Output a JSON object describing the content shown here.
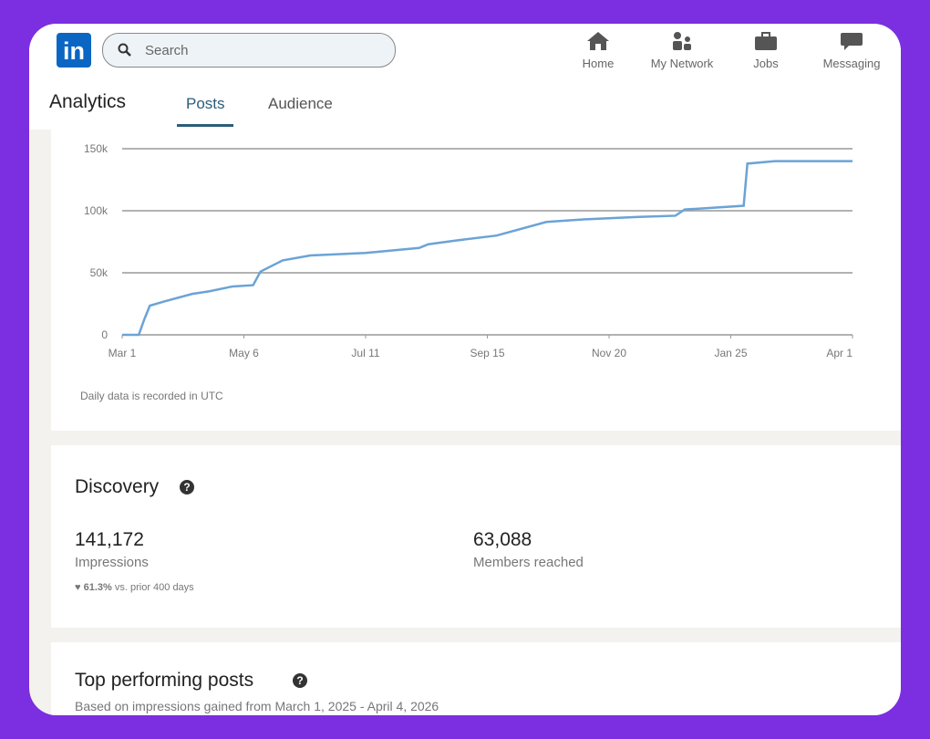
{
  "header": {
    "logo": "in",
    "search_placeholder": "Search",
    "nav": [
      "Home",
      "My Network",
      "Jobs",
      "Messaging"
    ]
  },
  "page_title": "Analytics",
  "tabs": [
    "Posts",
    "Audience"
  ],
  "chart_data": {
    "type": "line",
    "x": [
      0,
      9,
      12,
      15,
      23,
      38,
      47,
      60,
      71,
      75,
      87,
      102,
      132,
      161,
      166,
      181,
      203,
      230,
      250,
      280,
      300,
      305,
      337,
      339,
      354,
      396
    ],
    "series": [
      {
        "color": "#6ba3d6",
        "values": [
          0,
          0,
          12500,
          23500,
          27000,
          33000,
          35000,
          39000,
          40000,
          51000,
          60000,
          64000,
          66000,
          70000,
          73000,
          76000,
          80000,
          91000,
          93000,
          95000,
          96000,
          101000,
          104000,
          138000,
          140000,
          140000
        ]
      }
    ],
    "xlim": [
      0,
      396
    ],
    "xticks": [
      {
        "value": 0,
        "label": "Mar 1"
      },
      {
        "value": 66,
        "label": "May 6"
      },
      {
        "value": 132,
        "label": "Jul 11"
      },
      {
        "value": 198,
        "label": "Sep 15"
      },
      {
        "value": 264,
        "label": "Nov 20"
      },
      {
        "value": 330,
        "label": "Jan 25"
      },
      {
        "value": 396,
        "label": "Apr 1"
      }
    ],
    "ylim": [
      0,
      150000
    ],
    "yticks": [
      0,
      {
        "value": 50000,
        "label": "50k"
      },
      {
        "value": 100000,
        "label": "100k"
      },
      {
        "value": 150000,
        "label": "150k"
      }
    ],
    "grid": true,
    "note": "Daily data is recorded in UTC"
  },
  "discovery": {
    "title": "Discovery",
    "impressions": "141,172",
    "impressions_label": "Impressions",
    "change": "61.3%",
    "change_text": "vs. prior 400 days",
    "members": "63,088",
    "members_label": "Members reached"
  },
  "top_posts": {
    "title": "Top performing posts",
    "subtitle": "Based on impressions gained from March 1, 2025 - April 4, 2026"
  }
}
